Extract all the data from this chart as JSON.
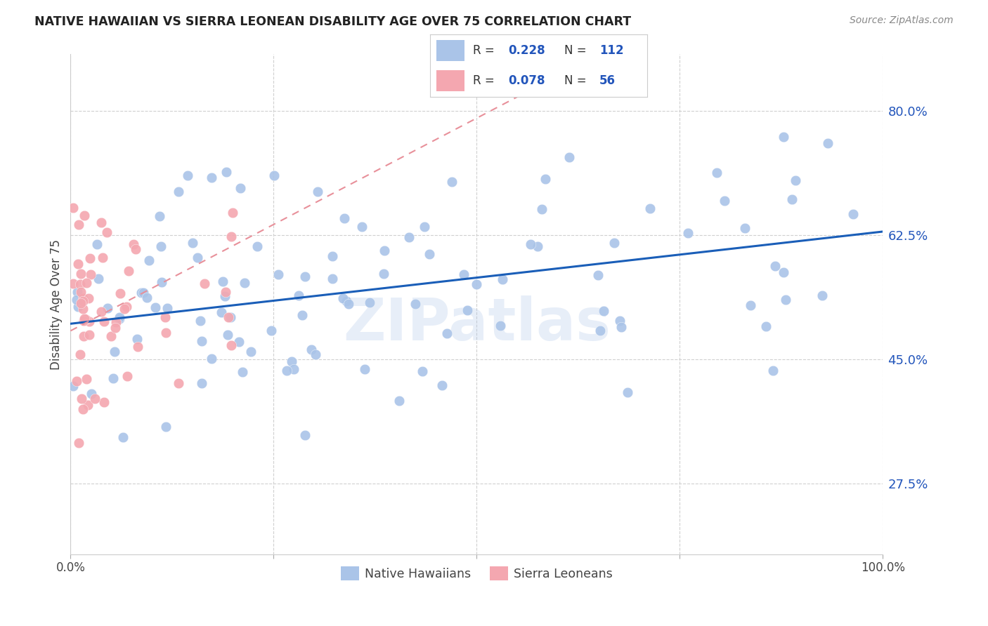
{
  "title": "NATIVE HAWAIIAN VS SIERRA LEONEAN DISABILITY AGE OVER 75 CORRELATION CHART",
  "source": "Source: ZipAtlas.com",
  "ylabel": "Disability Age Over 75",
  "watermark": "ZIPatlas",
  "xlim": [
    0.0,
    1.0
  ],
  "ylim": [
    0.175,
    0.88
  ],
  "ytick_labels": [
    "27.5%",
    "45.0%",
    "62.5%",
    "80.0%"
  ],
  "yticks": [
    0.275,
    0.45,
    0.625,
    0.8
  ],
  "blue_R": 0.228,
  "blue_N": 112,
  "pink_R": 0.078,
  "pink_N": 56,
  "blue_color": "#aac4e8",
  "pink_color": "#f4a7b0",
  "blue_line_color": "#1a5eb8",
  "pink_line_color": "#e8909a",
  "grid_color": "#d0d0d0",
  "background_color": "#ffffff",
  "title_fontsize": 12.5,
  "source_fontsize": 10,
  "blue_intercept": 0.5,
  "blue_slope": 0.13,
  "pink_intercept": 0.49,
  "pink_slope": 0.6
}
